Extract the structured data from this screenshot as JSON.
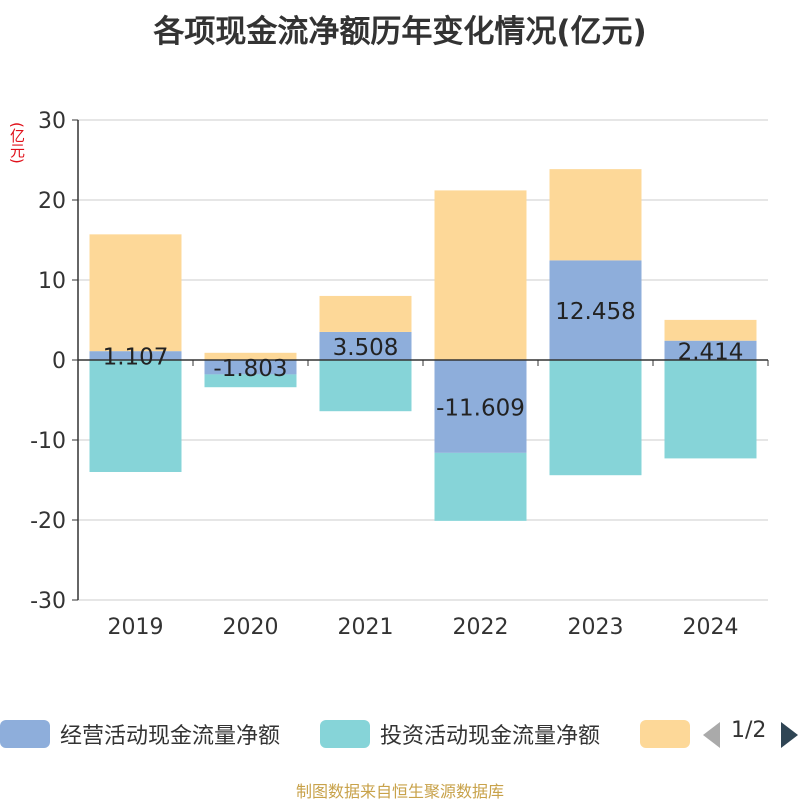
{
  "chart_data": {
    "type": "bar",
    "stacked": true,
    "title": "各项现金流净额历年变化情况(亿元)",
    "ylabel": "(亿元)",
    "categories": [
      "2019",
      "2020",
      "2021",
      "2022",
      "2023",
      "2024"
    ],
    "ylim": [
      -30,
      30
    ],
    "yticks": [
      -30,
      -20,
      -10,
      0,
      10,
      20,
      30
    ],
    "grid": true,
    "series": [
      {
        "name": "经营活动现金流量净额",
        "color": "#8eaedb",
        "values": [
          1.107,
          -1.803,
          3.508,
          -11.609,
          12.458,
          2.414
        ],
        "labels": [
          "1.107",
          "-1.803",
          "3.508",
          "-11.609",
          "12.458",
          "2.414"
        ]
      },
      {
        "name": "投资活动现金流量净额",
        "color": "#86d4d8",
        "values": [
          -14.0,
          -1.6,
          -6.4,
          -8.5,
          -14.4,
          -12.3
        ]
      },
      {
        "name": "",
        "color": "#fdd898",
        "values": [
          14.6,
          0.9,
          4.5,
          21.2,
          11.4,
          2.6
        ]
      }
    ],
    "legend_position": "bottom"
  },
  "legend": {
    "page": "1/2"
  },
  "source": "制图数据来自恒生聚源数据库"
}
